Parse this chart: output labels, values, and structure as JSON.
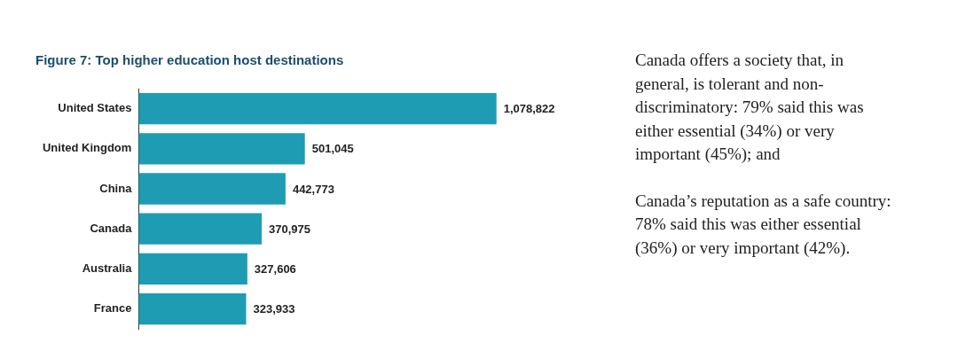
{
  "chart_data": {
    "type": "bar",
    "orientation": "horizontal",
    "title": "Figure 7: Top higher education host destinations",
    "categories": [
      "United States",
      "United Kingdom",
      "China",
      "Canada",
      "Australia",
      "France"
    ],
    "values": [
      1078822,
      501045,
      442773,
      370975,
      327606,
      323933
    ],
    "value_labels": [
      "1,078,822",
      "501,045",
      "442,773",
      "370,975",
      "327,606",
      "323,933"
    ],
    "color": "#1e9cb4",
    "grid": false,
    "legend": false,
    "annotations": [
      "Canada offers a society that, in general, is tolerant and non-discriminatory: 79% said this was either essential (34%) or very important (45%); and",
      "Canada’s reputation as a safe country: 78% said this was either essential (36%) or very important (42%)."
    ]
  }
}
